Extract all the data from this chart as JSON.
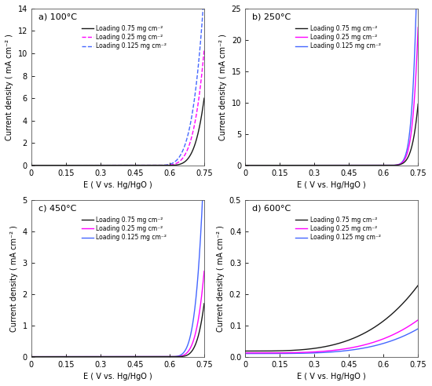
{
  "panels": [
    {
      "label": "a) 100°C",
      "ylim": [
        0,
        14
      ],
      "yticks": [
        0,
        2,
        4,
        6,
        8,
        10,
        12,
        14
      ],
      "curves": [
        {
          "color": "#1a1a1a",
          "style": "-",
          "onset": 0.575,
          "scale": 4.6,
          "exp": 4.5
        },
        {
          "color": "#ff00ff",
          "style": "--",
          "onset": 0.548,
          "scale": 8.2,
          "exp": 4.5
        },
        {
          "color": "#4466ff",
          "style": "--",
          "onset": 0.53,
          "scale": 12.5,
          "exp": 4.5
        }
      ],
      "legend_styles": [
        "-",
        "--",
        "--"
      ],
      "zorders": [
        3,
        2,
        1
      ]
    },
    {
      "label": "b) 250°C",
      "ylim": [
        0,
        25
      ],
      "yticks": [
        0,
        5,
        10,
        15,
        20,
        25
      ],
      "curves": [
        {
          "color": "#1a1a1a",
          "style": "-",
          "onset": 0.598,
          "scale": 6.5,
          "exp": 6.0
        },
        {
          "color": "#ff00ff",
          "style": "-",
          "onset": 0.59,
          "scale": 14.0,
          "exp": 7.0
        },
        {
          "color": "#4466ff",
          "style": "-",
          "onset": 0.583,
          "scale": 23.0,
          "exp": 8.0
        }
      ],
      "legend_styles": [
        "-",
        "-",
        "-"
      ],
      "zorders": [
        3,
        2,
        1
      ]
    },
    {
      "label": "c) 450°C",
      "ylim": [
        0,
        5
      ],
      "yticks": [
        0,
        1,
        2,
        3,
        4,
        5
      ],
      "curves": [
        {
          "color": "#1a1a1a",
          "style": "-",
          "onset": 0.615,
          "scale": 1.2,
          "exp": 4.5
        },
        {
          "color": "#ff00ff",
          "style": "-",
          "onset": 0.6,
          "scale": 2.0,
          "exp": 4.5
        },
        {
          "color": "#4466ff",
          "style": "-",
          "onset": 0.585,
          "scale": 4.6,
          "exp": 5.0
        }
      ],
      "legend_styles": [
        "-",
        "-",
        "-"
      ],
      "zorders": [
        3,
        2,
        1
      ]
    },
    {
      "label": "d) 600°C",
      "ylim": [
        0,
        0.5
      ],
      "yticks": [
        0,
        0.1,
        0.2,
        0.3,
        0.4,
        0.5
      ],
      "curves": [
        {
          "color": "#1a1a1a",
          "style": "-",
          "base": 0.018,
          "scale": 0.2,
          "exp": 3.5
        },
        {
          "color": "#ff00ff",
          "style": "-",
          "base": 0.012,
          "scale": 0.1,
          "exp": 3.8
        },
        {
          "color": "#4466ff",
          "style": "-",
          "base": 0.01,
          "scale": 0.075,
          "exp": 4.0
        }
      ],
      "legend_styles": [
        "-",
        "-",
        "-"
      ],
      "zorders": [
        3,
        2,
        1
      ]
    }
  ],
  "xlabel": "E ( V vs. Hg/HgO )",
  "ylabel": "Current density ( mA cm⁻² )",
  "xlim": [
    0,
    0.75
  ],
  "xticks": [
    0,
    0.15,
    0.3,
    0.45,
    0.6,
    0.75
  ],
  "legend_labels": [
    "Loading 0.75 mg cm⁻²",
    "Loading 0.25 mg cm⁻²",
    "Loading 0.125 mg cm⁻²"
  ],
  "legend_colors": [
    "#1a1a1a",
    "#ff00ff",
    "#4466ff"
  ]
}
